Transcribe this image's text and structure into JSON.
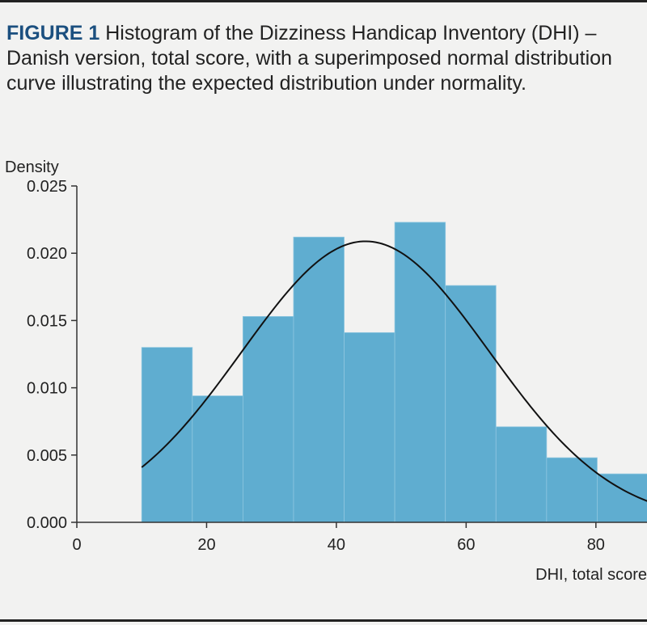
{
  "figure": {
    "label": "FIGURE 1",
    "caption": " Histogram of the Dizziness Handicap Inventory (DHI) – Danish version, total score, with a superimposed normal distribution curve illustrating the expected distribution under normality."
  },
  "colors": {
    "bar_fill": "#5fadd0",
    "bar_edge": "#8fc7e0",
    "curve": "#111111",
    "axis": "#333333",
    "caption_label": "#1b4f7f",
    "background": "#f2f2f1"
  },
  "chart_data": {
    "type": "bar",
    "title": "",
    "xlabel": "DHI, total score",
    "ylabel": "Density",
    "xlim": [
      0,
      88
    ],
    "ylim": [
      0,
      0.025
    ],
    "xticks": [
      0,
      20,
      40,
      60,
      80
    ],
    "xtick_labels": [
      "0",
      "20",
      "40",
      "60",
      "80"
    ],
    "yticks": [
      0,
      0.005,
      0.01,
      0.015,
      0.02,
      0.025
    ],
    "ytick_labels": [
      "0.000",
      "0.005",
      "0.010",
      "0.015",
      "0.020",
      "0.025"
    ],
    "grid": false,
    "histogram": {
      "bin_edges": [
        10,
        17.8,
        25.6,
        33.4,
        41.2,
        49,
        56.8,
        64.6,
        72.4,
        80.2,
        88
      ],
      "density": [
        0.013,
        0.0094,
        0.0153,
        0.0212,
        0.0141,
        0.0223,
        0.0176,
        0.0071,
        0.0048,
        0.0036
      ]
    },
    "normal_curve": {
      "mean": 44.5,
      "sd": 19.1,
      "x_range": [
        10,
        88
      ]
    }
  }
}
